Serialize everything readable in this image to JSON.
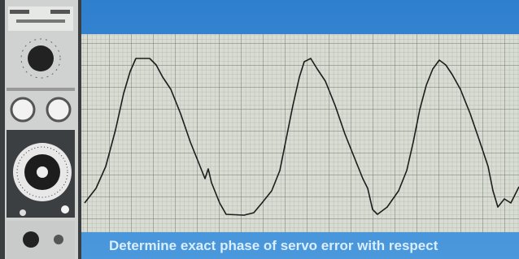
{
  "caption": "Determine exact phase of servo error with respect"
}
